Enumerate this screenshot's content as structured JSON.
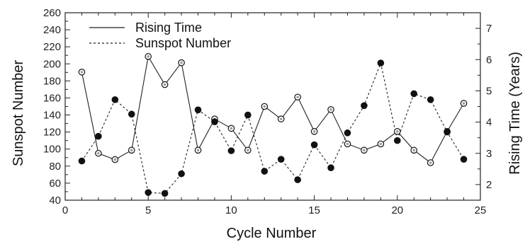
{
  "chart_data": {
    "type": "line",
    "xlabel": "Cycle Number",
    "ylabel_left": "Sunspot Number",
    "ylabel_right": "Rising Time (Years)",
    "xlim": [
      0,
      25
    ],
    "ylim_left": [
      40,
      260
    ],
    "ylim_right": [
      1.5,
      7.5
    ],
    "x_ticks": [
      0,
      5,
      10,
      15,
      20,
      25
    ],
    "y_left_ticks": [
      40,
      60,
      80,
      100,
      120,
      140,
      160,
      180,
      200,
      220,
      240,
      260
    ],
    "y_right_ticks": [
      2,
      3,
      4,
      5,
      6,
      7
    ],
    "grid": false,
    "legend_position": "top-left",
    "x": [
      1,
      2,
      3,
      4,
      5,
      6,
      7,
      8,
      9,
      10,
      11,
      12,
      13,
      14,
      15,
      16,
      17,
      18,
      19,
      20,
      21,
      22,
      23,
      24
    ],
    "series": [
      {
        "name": "Rising Time",
        "axis": "right",
        "line_style": "solid",
        "marker": "open-circle",
        "values": [
          5.6,
          3.0,
          2.8,
          3.1,
          6.1,
          5.2,
          5.9,
          3.1,
          4.1,
          3.8,
          3.1,
          4.5,
          4.1,
          4.8,
          3.7,
          4.4,
          3.3,
          3.1,
          3.3,
          3.7,
          3.1,
          2.7,
          3.7,
          4.6
        ]
      },
      {
        "name": "Sunspot Number",
        "axis": "left",
        "line_style": "dashed",
        "marker": "filled-circle",
        "values": [
          86,
          115,
          158,
          141,
          49,
          48,
          71,
          146,
          132,
          98,
          140,
          74,
          88,
          64,
          105,
          78,
          119,
          151,
          201,
          110,
          165,
          158,
          120,
          88
        ]
      }
    ]
  }
}
